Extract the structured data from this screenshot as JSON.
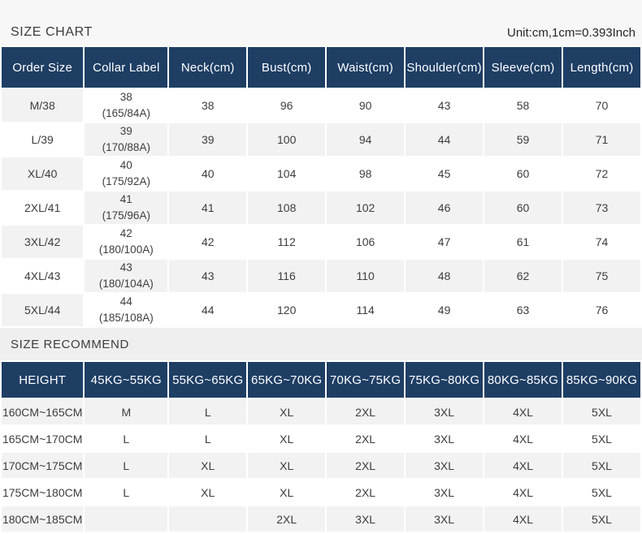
{
  "page": {
    "title": "SIZE CHART",
    "unit_note": "Unit:cm,1cm=0.393Inch",
    "recommend_title": "SIZE RECOMMEND"
  },
  "colors": {
    "header_navy": "#1e3e64",
    "row_gray": "#f2f2f2",
    "row_white": "#ffffff",
    "recommend_band_gray": "#efefef",
    "top_band_gray": "#f7f7f7",
    "header_text": "#ffffff",
    "body_text": "#3d3d3d"
  },
  "size_chart": {
    "headers": [
      "Order Size",
      "Collar Label",
      "Neck(cm)",
      "Bust(cm)",
      "Waist(cm)",
      "Shoulder(cm)",
      "Sleeve(cm)",
      "Length(cm)"
    ],
    "rows": [
      {
        "cells": [
          "M/38",
          [
            "38",
            "(165/84A)"
          ],
          "38",
          "96",
          "90",
          "43",
          "58",
          "70"
        ]
      },
      {
        "cells": [
          "L/39",
          [
            "39",
            "(170/88A)"
          ],
          "39",
          "100",
          "94",
          "44",
          "59",
          "71"
        ]
      },
      {
        "cells": [
          "XL/40",
          [
            "40",
            "(175/92A)"
          ],
          "40",
          "104",
          "98",
          "45",
          "60",
          "72"
        ]
      },
      {
        "cells": [
          "2XL/41",
          [
            "41",
            "(175/96A)"
          ],
          "41",
          "108",
          "102",
          "46",
          "60",
          "73"
        ]
      },
      {
        "cells": [
          "3XL/42",
          [
            "42",
            "(180/100A)"
          ],
          "42",
          "112",
          "106",
          "47",
          "61",
          "74"
        ]
      },
      {
        "cells": [
          "4XL/43",
          [
            "43",
            "(180/104A)"
          ],
          "43",
          "116",
          "110",
          "48",
          "62",
          "75"
        ]
      },
      {
        "cells": [
          "5XL/44",
          [
            "44",
            "(185/108A)"
          ],
          "44",
          "120",
          "114",
          "49",
          "63",
          "76"
        ]
      }
    ]
  },
  "size_recommend": {
    "headers": [
      "HEIGHT",
      "45KG~55KG",
      "55KG~65KG",
      "65KG~70KG",
      "70KG~75KG",
      "75KG~80KG",
      "80KG~85KG",
      "85KG~90KG"
    ],
    "rows": [
      {
        "cells": [
          "160CM~165CM",
          "M",
          "L",
          "XL",
          "2XL",
          "3XL",
          "4XL",
          "5XL"
        ]
      },
      {
        "cells": [
          "165CM~170CM",
          "L",
          "L",
          "XL",
          "2XL",
          "3XL",
          "4XL",
          "5XL"
        ]
      },
      {
        "cells": [
          "170CM~175CM",
          "L",
          "XL",
          "XL",
          "2XL",
          "3XL",
          "4XL",
          "5XL"
        ]
      },
      {
        "cells": [
          "175CM~180CM",
          "L",
          "XL",
          "XL",
          "2XL",
          "3XL",
          "4XL",
          "5XL"
        ]
      },
      {
        "cells": [
          "180CM~185CM",
          "",
          "",
          "2XL",
          "3XL",
          "3XL",
          "4XL",
          "5XL"
        ]
      }
    ]
  }
}
